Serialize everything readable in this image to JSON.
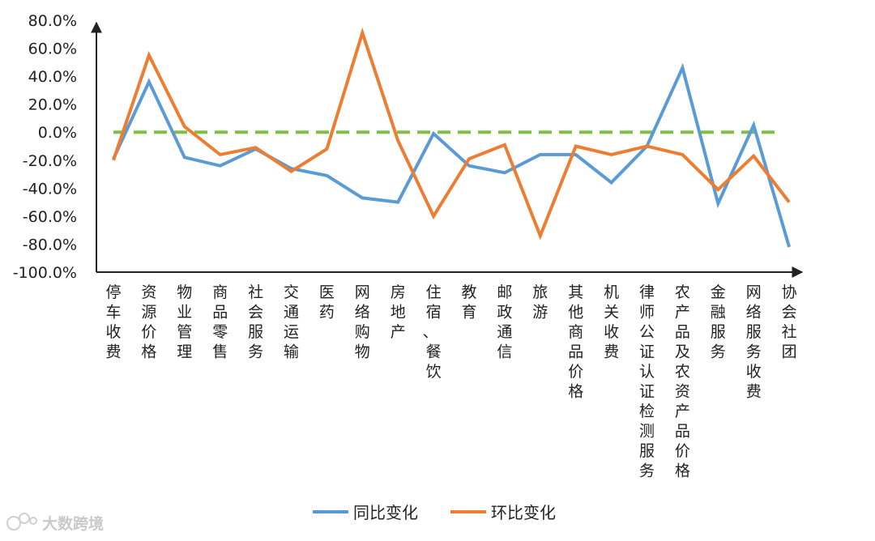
{
  "watermark": "大数跨境",
  "chart_data": {
    "type": "line",
    "categories": [
      "停车收费",
      "资源价格",
      "物业管理",
      "商品零售",
      "社会服务",
      "交通运输",
      "医药",
      "网络购物",
      "房地产",
      "住宿、餐饮",
      "教育",
      "邮政通信",
      "旅游",
      "其他商品价格",
      "机关收费",
      "律师公证认证检测服务",
      "农产品及农资产品价格",
      "金融服务",
      "网络服务收费",
      "协会社团"
    ],
    "ylim": [
      -100,
      80
    ],
    "yticks": [
      80,
      60,
      40,
      20,
      0,
      -20,
      -40,
      -60,
      -80,
      -100
    ],
    "ytick_labels": [
      "80.0%",
      "60.0%",
      "40.0%",
      "20.0%",
      "0.0%",
      "-20.0%",
      "-40.0%",
      "-60.0%",
      "-80.0%",
      "-100.0%"
    ],
    "grid": false,
    "legend_position": "bottom",
    "reference_line": {
      "y": 0,
      "color": "#7cc242",
      "style": "dashed"
    },
    "series": [
      {
        "name": "同比变化",
        "color": "#5b9bd5",
        "values": [
          -19,
          36,
          -18,
          -24,
          -12,
          -26,
          -31,
          -47,
          -50,
          -1,
          -24,
          -29,
          -16,
          -16,
          -36,
          -10,
          46,
          -51,
          5,
          -82
        ]
      },
      {
        "name": "环比变化",
        "color": "#ed7d31",
        "values": [
          -20,
          55,
          4,
          -16,
          -11,
          -28,
          -12,
          71,
          -6,
          -60,
          -19,
          -9,
          -74,
          -10,
          -16,
          -10,
          -16,
          -41,
          -17,
          -50
        ]
      }
    ]
  }
}
